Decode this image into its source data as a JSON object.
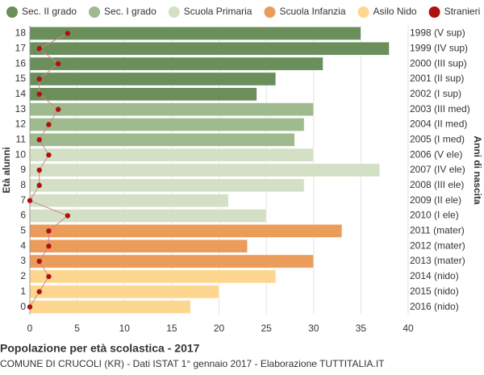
{
  "chart_data": {
    "type": "bar",
    "orientation": "horizontal",
    "title": "Popolazione per età scolastica - 2017",
    "subtitle": "COMUNE DI CRUCOLI (KR) - Dati ISTAT 1° gennaio 2017 - Elaborazione TUTTITALIA.IT",
    "y_label": "Età alunni",
    "y2_label": "Anni di nascita",
    "categories": [
      "0",
      "1",
      "2",
      "3",
      "4",
      "5",
      "6",
      "7",
      "8",
      "9",
      "10",
      "11",
      "12",
      "13",
      "14",
      "15",
      "16",
      "17",
      "18"
    ],
    "right_labels": [
      "2016 (nido)",
      "2015 (nido)",
      "2014 (nido)",
      "2013 (mater)",
      "2012 (mater)",
      "2011 (mater)",
      "2010 (I ele)",
      "2009 (II ele)",
      "2008 (III ele)",
      "2007 (IV ele)",
      "2006 (V ele)",
      "2005 (I med)",
      "2004 (II med)",
      "2003 (III med)",
      "2002 (I sup)",
      "2001 (II sup)",
      "2000 (III sup)",
      "1999 (IV sup)",
      "1998 (V sup)"
    ],
    "series": [
      {
        "name": "Sec. II grado",
        "color": "#6b8f5b",
        "style": "bar",
        "values": [
          null,
          null,
          null,
          null,
          null,
          null,
          null,
          null,
          null,
          null,
          null,
          null,
          null,
          null,
          24,
          26,
          31,
          38,
          35
        ]
      },
      {
        "name": "Sec. I grado",
        "color": "#9fba8e",
        "style": "bar",
        "values": [
          null,
          null,
          null,
          null,
          null,
          null,
          null,
          null,
          null,
          null,
          null,
          28,
          29,
          30,
          null,
          null,
          null,
          null,
          null
        ]
      },
      {
        "name": "Scuola Primaria",
        "color": "#d4e0c5",
        "style": "bar",
        "values": [
          null,
          null,
          null,
          null,
          null,
          null,
          25,
          21,
          29,
          37,
          30,
          null,
          null,
          null,
          null,
          null,
          null,
          null,
          null
        ]
      },
      {
        "name": "Scuola Infanzia",
        "color": "#eb9c5a",
        "style": "bar",
        "values": [
          null,
          null,
          null,
          30,
          23,
          33,
          null,
          null,
          null,
          null,
          null,
          null,
          null,
          null,
          null,
          null,
          null,
          null,
          null
        ]
      },
      {
        "name": "Asilo Nido",
        "color": "#fdd78f",
        "style": "bar",
        "values": [
          17,
          20,
          26,
          null,
          null,
          null,
          null,
          null,
          null,
          null,
          null,
          null,
          null,
          null,
          null,
          null,
          null,
          null,
          null
        ]
      },
      {
        "name": "Stranieri",
        "color": "#b01010",
        "style": "line",
        "values": [
          0,
          1,
          2,
          1,
          2,
          2,
          4,
          0,
          1,
          1,
          2,
          1,
          2,
          3,
          1,
          1,
          3,
          1,
          4
        ]
      }
    ],
    "xlim": [
      0,
      40
    ],
    "xticks": [
      0,
      5,
      10,
      15,
      20,
      25,
      30,
      35,
      40
    ],
    "grid": true
  }
}
